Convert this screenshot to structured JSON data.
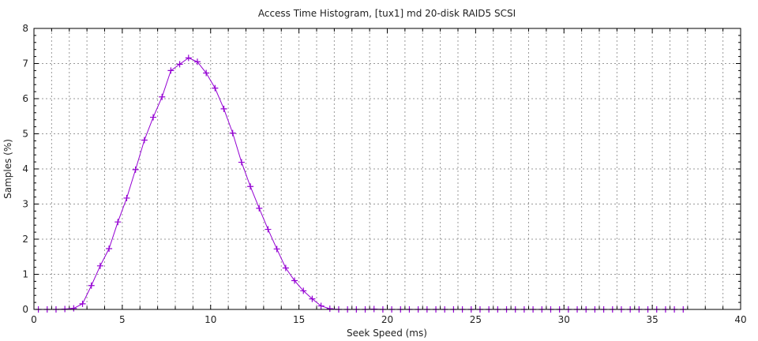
{
  "chart_data": {
    "type": "line",
    "title": "Access Time Histogram, [tux1] md 20-disk RAID5 SCSI",
    "xlabel": "Seek Speed (ms)",
    "ylabel": "Samples (%)",
    "xlim": [
      0,
      40
    ],
    "ylim": [
      0,
      8
    ],
    "xticks": [
      0,
      5,
      10,
      15,
      20,
      25,
      30,
      35,
      40
    ],
    "yticks": [
      0,
      1,
      2,
      3,
      4,
      5,
      6,
      7,
      8
    ],
    "grid": true,
    "marker": "plus",
    "series_color": "#9400d3",
    "series": [
      {
        "x": [
          0.25,
          0.75,
          1.25,
          1.75,
          2.25,
          2.75,
          3.25,
          3.75,
          4.25,
          4.75,
          5.25,
          5.75,
          6.25,
          6.75,
          7.25,
          7.75,
          8.25,
          8.75,
          9.25,
          9.75,
          10.25,
          10.75,
          11.25,
          11.75,
          12.25,
          12.75,
          13.25,
          13.75,
          14.25,
          14.75,
          15.25,
          15.75,
          16.25,
          16.75,
          17.25,
          17.75,
          18.25,
          18.75,
          19.25,
          19.75,
          20.25,
          20.75,
          21.25,
          21.75,
          22.25,
          22.75,
          23.25,
          23.75,
          24.25,
          24.75,
          25.25,
          25.75,
          26.25,
          26.75,
          27.25,
          27.75,
          28.25,
          28.75,
          29.25,
          29.75,
          30.25,
          30.75,
          31.25,
          31.75,
          32.25,
          32.75,
          33.25,
          33.75,
          34.25,
          34.75,
          35.25,
          35.75,
          36.25,
          36.75
        ],
        "y": [
          0,
          0,
          0,
          0.01,
          0.03,
          0.16,
          0.68,
          1.24,
          1.73,
          2.49,
          3.17,
          3.98,
          4.82,
          5.47,
          6.05,
          6.8,
          6.98,
          7.16,
          7.05,
          6.73,
          6.3,
          5.71,
          5.02,
          4.19,
          3.5,
          2.88,
          2.28,
          1.72,
          1.18,
          0.82,
          0.53,
          0.3,
          0.1,
          0.02,
          0,
          0,
          0,
          0,
          0.01,
          0,
          0,
          0,
          0,
          0,
          0,
          0,
          0,
          0,
          0,
          0,
          0,
          0,
          0,
          0,
          0,
          0,
          0,
          0,
          0,
          0,
          0,
          0,
          0,
          0,
          0,
          0,
          0,
          0,
          0,
          0,
          0,
          0,
          0,
          0
        ]
      }
    ]
  }
}
